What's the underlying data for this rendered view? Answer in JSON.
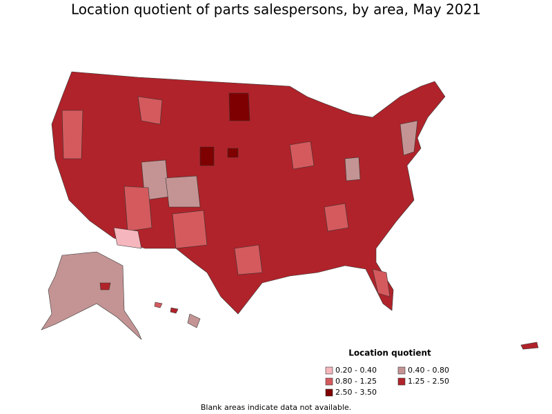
{
  "title": "Location quotient of parts salespersons, by area, May 2021",
  "legend": {
    "title": "Location quotient",
    "items": [
      {
        "label": "0.20 - 0.40",
        "color": "#f5b7bd"
      },
      {
        "label": "0.40 - 0.80",
        "color": "#c49494"
      },
      {
        "label": "0.80 - 1.25",
        "color": "#d45a5e"
      },
      {
        "label": "1.25 - 2.50",
        "color": "#b0232a"
      },
      {
        "label": "2.50 - 3.50",
        "color": "#7f0000"
      }
    ]
  },
  "footnote": "Blank areas indicate data not available."
}
